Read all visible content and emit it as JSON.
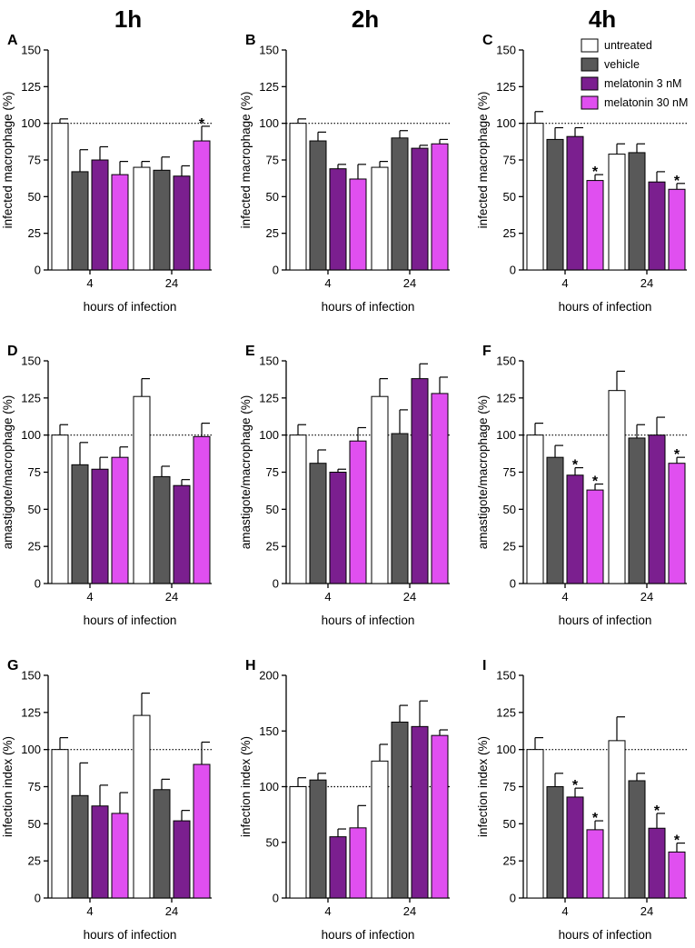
{
  "column_titles": [
    "1h",
    "2h",
    "4h"
  ],
  "legend": {
    "entries": [
      "untreated",
      "vehicle",
      "melatonin 3 nM",
      "melatonin 30 nM"
    ]
  },
  "colors": {
    "untreated": "#ffffff",
    "vehicle": "#595959",
    "melatonin_3nM": "#7b1f8f",
    "melatonin_30nM": "#e04ff0"
  },
  "chart_data": [
    {
      "type": "bar",
      "panel": "A",
      "ylabel": "infected macrophage (%)",
      "xlabel": "hours of infection",
      "categories": [
        "4",
        "24"
      ],
      "ylim": [
        0,
        150
      ],
      "yticks": [
        0,
        25,
        50,
        75,
        100,
        125,
        150
      ],
      "reference_line": 100,
      "series": [
        {
          "name": "untreated",
          "values": [
            100,
            70
          ],
          "errors": [
            3,
            4
          ]
        },
        {
          "name": "vehicle",
          "values": [
            67,
            68
          ],
          "errors": [
            15,
            9
          ]
        },
        {
          "name": "melatonin 3 nM",
          "values": [
            75,
            64
          ],
          "errors": [
            9,
            7
          ]
        },
        {
          "name": "melatonin 30 nM",
          "values": [
            65,
            88
          ],
          "errors": [
            9,
            10
          ]
        }
      ],
      "significance": [
        [
          1,
          3
        ]
      ]
    },
    {
      "type": "bar",
      "panel": "B",
      "ylabel": "infected macrophage (%)",
      "xlabel": "hours of infection",
      "categories": [
        "4",
        "24"
      ],
      "ylim": [
        0,
        150
      ],
      "yticks": [
        0,
        25,
        50,
        75,
        100,
        125,
        150
      ],
      "reference_line": 100,
      "series": [
        {
          "name": "untreated",
          "values": [
            100,
            70
          ],
          "errors": [
            3,
            4
          ]
        },
        {
          "name": "vehicle",
          "values": [
            88,
            90
          ],
          "errors": [
            6,
            5
          ]
        },
        {
          "name": "melatonin 3 nM",
          "values": [
            69,
            83
          ],
          "errors": [
            3,
            2
          ]
        },
        {
          "name": "melatonin 30 nM",
          "values": [
            62,
            86
          ],
          "errors": [
            10,
            3
          ]
        }
      ],
      "significance": []
    },
    {
      "type": "bar",
      "panel": "C",
      "ylabel": "infected macrophage (%)",
      "xlabel": "hours of infection",
      "categories": [
        "4",
        "24"
      ],
      "ylim": [
        0,
        150
      ],
      "yticks": [
        0,
        25,
        50,
        75,
        100,
        125,
        150
      ],
      "reference_line": 100,
      "series": [
        {
          "name": "untreated",
          "values": [
            100,
            79
          ],
          "errors": [
            8,
            7
          ]
        },
        {
          "name": "vehicle",
          "values": [
            89,
            80
          ],
          "errors": [
            8,
            6
          ]
        },
        {
          "name": "melatonin 3 nM",
          "values": [
            91,
            60
          ],
          "errors": [
            6,
            7
          ]
        },
        {
          "name": "melatonin 30 nM",
          "values": [
            61,
            55
          ],
          "errors": [
            4,
            4
          ]
        }
      ],
      "significance": [
        [
          0,
          3
        ],
        [
          1,
          3
        ]
      ]
    },
    {
      "type": "bar",
      "panel": "D",
      "ylabel": "amastigote/macrophage (%)",
      "xlabel": "hours of infection",
      "categories": [
        "4",
        "24"
      ],
      "ylim": [
        0,
        150
      ],
      "yticks": [
        0,
        25,
        50,
        75,
        100,
        125,
        150
      ],
      "reference_line": 100,
      "series": [
        {
          "name": "untreated",
          "values": [
            100,
            126
          ],
          "errors": [
            7,
            12
          ]
        },
        {
          "name": "vehicle",
          "values": [
            80,
            72
          ],
          "errors": [
            15,
            7
          ]
        },
        {
          "name": "melatonin 3 nM",
          "values": [
            77,
            66
          ],
          "errors": [
            8,
            4
          ]
        },
        {
          "name": "melatonin 30 nM",
          "values": [
            85,
            99
          ],
          "errors": [
            7,
            9
          ]
        }
      ],
      "significance": []
    },
    {
      "type": "bar",
      "panel": "E",
      "ylabel": "amastigote/macrophage (%)",
      "xlabel": "hours of infection",
      "categories": [
        "4",
        "24"
      ],
      "ylim": [
        0,
        150
      ],
      "yticks": [
        0,
        25,
        50,
        75,
        100,
        125,
        150
      ],
      "reference_line": 100,
      "series": [
        {
          "name": "untreated",
          "values": [
            100,
            126
          ],
          "errors": [
            7,
            12
          ]
        },
        {
          "name": "vehicle",
          "values": [
            81,
            101
          ],
          "errors": [
            9,
            16
          ]
        },
        {
          "name": "melatonin 3 nM",
          "values": [
            75,
            138
          ],
          "errors": [
            2,
            10
          ]
        },
        {
          "name": "melatonin 30 nM",
          "values": [
            96,
            128
          ],
          "errors": [
            9,
            11
          ]
        }
      ],
      "significance": []
    },
    {
      "type": "bar",
      "panel": "F",
      "ylabel": "amastigote/macrophage (%)",
      "xlabel": "hours of infection",
      "categories": [
        "4",
        "24"
      ],
      "ylim": [
        0,
        150
      ],
      "yticks": [
        0,
        25,
        50,
        75,
        100,
        125,
        150
      ],
      "reference_line": 100,
      "series": [
        {
          "name": "untreated",
          "values": [
            100,
            130
          ],
          "errors": [
            8,
            13
          ]
        },
        {
          "name": "vehicle",
          "values": [
            85,
            98
          ],
          "errors": [
            8,
            9
          ]
        },
        {
          "name": "melatonin 3 nM",
          "values": [
            73,
            100
          ],
          "errors": [
            5,
            12
          ]
        },
        {
          "name": "melatonin 30 nM",
          "values": [
            63,
            81
          ],
          "errors": [
            4,
            4
          ]
        }
      ],
      "significance": [
        [
          0,
          2
        ],
        [
          0,
          3
        ],
        [
          1,
          3
        ]
      ]
    },
    {
      "type": "bar",
      "panel": "G",
      "ylabel": "infection index (%)",
      "xlabel": "hours of infection",
      "categories": [
        "4",
        "24"
      ],
      "ylim": [
        0,
        150
      ],
      "yticks": [
        0,
        25,
        50,
        75,
        100,
        125,
        150
      ],
      "reference_line": 100,
      "series": [
        {
          "name": "untreated",
          "values": [
            100,
            123
          ],
          "errors": [
            8,
            15
          ]
        },
        {
          "name": "vehicle",
          "values": [
            69,
            73
          ],
          "errors": [
            22,
            7
          ]
        },
        {
          "name": "melatonin 3 nM",
          "values": [
            62,
            52
          ],
          "errors": [
            14,
            7
          ]
        },
        {
          "name": "melatonin 30 nM",
          "values": [
            57,
            90
          ],
          "errors": [
            14,
            15
          ]
        }
      ],
      "significance": []
    },
    {
      "type": "bar",
      "panel": "H",
      "ylabel": "infection index (%)",
      "xlabel": "hours of infection",
      "categories": [
        "4",
        "24"
      ],
      "ylim": [
        0,
        200
      ],
      "yticks": [
        0,
        50,
        100,
        150,
        200
      ],
      "reference_line": 100,
      "series": [
        {
          "name": "untreated",
          "values": [
            100,
            123
          ],
          "errors": [
            8,
            15
          ]
        },
        {
          "name": "vehicle",
          "values": [
            106,
            158
          ],
          "errors": [
            6,
            15
          ]
        },
        {
          "name": "melatonin 3 nM",
          "values": [
            55,
            154
          ],
          "errors": [
            7,
            23
          ]
        },
        {
          "name": "melatonin 30 nM",
          "values": [
            63,
            146
          ],
          "errors": [
            20,
            5
          ]
        }
      ],
      "significance": []
    },
    {
      "type": "bar",
      "panel": "I",
      "ylabel": "infection index (%)",
      "xlabel": "hours of infection",
      "categories": [
        "4",
        "24"
      ],
      "ylim": [
        0,
        150
      ],
      "yticks": [
        0,
        25,
        50,
        75,
        100,
        125,
        150
      ],
      "reference_line": 100,
      "series": [
        {
          "name": "untreated",
          "values": [
            100,
            106
          ],
          "errors": [
            8,
            16
          ]
        },
        {
          "name": "vehicle",
          "values": [
            75,
            79
          ],
          "errors": [
            9,
            5
          ]
        },
        {
          "name": "melatonin 3 nM",
          "values": [
            68,
            47
          ],
          "errors": [
            6,
            10
          ]
        },
        {
          "name": "melatonin 30 nM",
          "values": [
            46,
            31
          ],
          "errors": [
            6,
            6
          ]
        }
      ],
      "significance": [
        [
          0,
          2
        ],
        [
          0,
          3
        ],
        [
          1,
          2
        ],
        [
          1,
          3
        ]
      ]
    }
  ]
}
